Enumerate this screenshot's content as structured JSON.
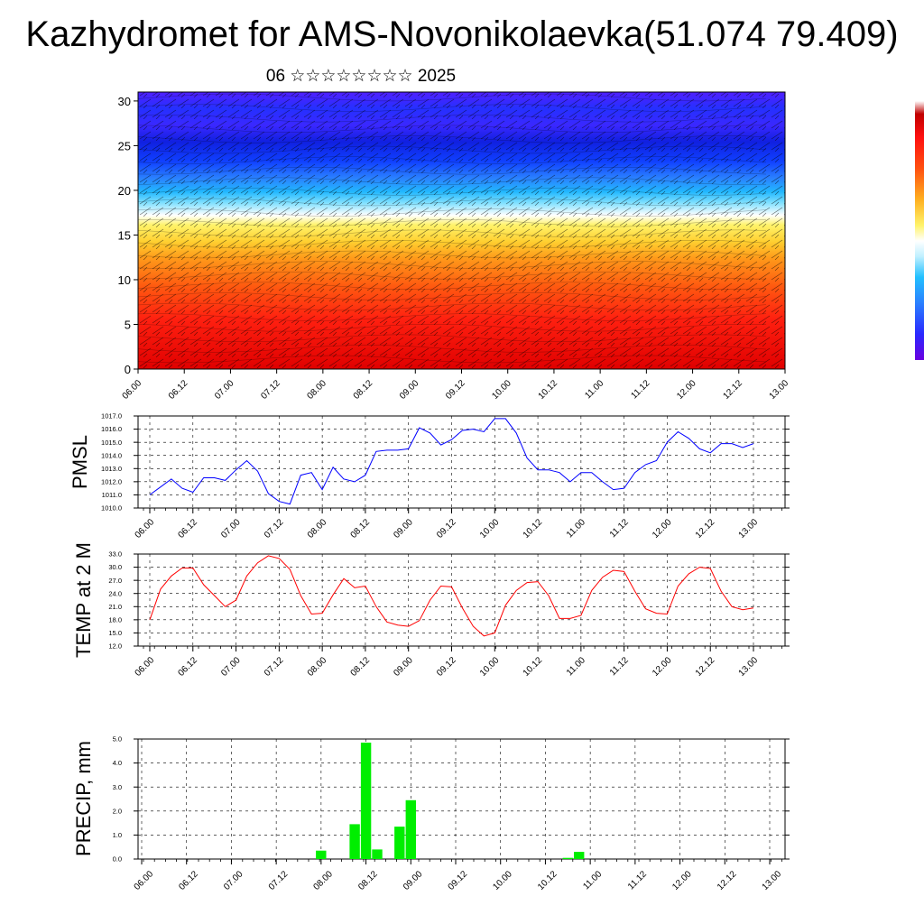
{
  "header": {
    "title": "Kazhydromet for AMS-Novonikolaevka(51.074 79.409)",
    "subtitle": "06 ☆☆☆☆☆☆☆☆ 2025"
  },
  "colors": {
    "pmsl_line": "#0000ff",
    "temp_line": "#ff0000",
    "precip_bar": "#00ee00",
    "grid": "#000000"
  },
  "chart_data": [
    {
      "type": "heatmap",
      "name": "cross-section",
      "x_ticks": [
        "06.00",
        "06.12",
        "07.00",
        "07.12",
        "08.00",
        "08.12",
        "09.00",
        "09.12",
        "10.00",
        "10.12",
        "11.00",
        "11.12",
        "12.00",
        "12.12",
        "13.00"
      ],
      "y_ticks": [
        "0",
        "5",
        "10",
        "15",
        "20",
        "25",
        "30"
      ],
      "ylim": [
        0,
        31
      ],
      "colorbar": [
        "#7f00ff",
        "#3f20ff",
        "#1030ff",
        "#2a80ff",
        "#22b8ff",
        "#80e0ff",
        "#ffffff",
        "#fff36a",
        "#ffd030",
        "#ff9a1a",
        "#ff6a10",
        "#ff2a10",
        "#e00000"
      ],
      "wind_barbs": true
    },
    {
      "type": "line",
      "name": "PMSL",
      "ylabel": "PMSL",
      "ylim": [
        1010.0,
        1017.0
      ],
      "y_ticks": [
        "1010.0",
        "1011.0",
        "1012.0",
        "1013.0",
        "1014.0",
        "1015.0",
        "1016.0",
        "1017.0"
      ],
      "x_ticks": [
        "06.00",
        "06.12",
        "07.00",
        "07.12",
        "08.00",
        "08.12",
        "09.00",
        "09.12",
        "10.00",
        "10.12",
        "11.00",
        "11.12",
        "12.00",
        "12.12",
        "13.00"
      ],
      "values": [
        1011.0,
        1011.6,
        1012.2,
        1011.5,
        1011.2,
        1012.3,
        1012.3,
        1012.1,
        1012.9,
        1013.6,
        1012.8,
        1011.1,
        1010.5,
        1010.3,
        1012.5,
        1012.7,
        1011.4,
        1013.1,
        1012.2,
        1012.0,
        1012.5,
        1014.3,
        1014.4,
        1014.4,
        1014.5,
        1016.1,
        1015.7,
        1014.8,
        1015.2,
        1015.9,
        1016.0,
        1015.8,
        1016.8,
        1016.8,
        1015.7,
        1013.8,
        1012.9,
        1012.9,
        1012.7,
        1012.0,
        1012.7,
        1012.7,
        1012.0,
        1011.4,
        1011.5,
        1012.7,
        1013.3,
        1013.6,
        1015.0,
        1015.8,
        1015.3,
        1014.5,
        1014.2,
        1014.9,
        1014.9,
        1014.6,
        1014.9
      ]
    },
    {
      "type": "line",
      "name": "TEMP at 2 M",
      "ylabel": "TEMP at 2 M",
      "ylim": [
        12.0,
        33.0
      ],
      "y_ticks": [
        "12.0",
        "15.0",
        "18.0",
        "21.0",
        "24.0",
        "27.0",
        "30.0",
        "33.0"
      ],
      "x_ticks": [
        "06.00",
        "06.12",
        "07.00",
        "07.12",
        "08.00",
        "08.12",
        "09.00",
        "09.12",
        "10.00",
        "10.12",
        "11.00",
        "11.12",
        "12.00",
        "12.12",
        "13.00"
      ],
      "values": [
        18.0,
        25.0,
        28.0,
        29.8,
        29.8,
        26.0,
        23.5,
        21.0,
        22.5,
        28.0,
        31.0,
        32.6,
        32.0,
        29.5,
        23.5,
        19.3,
        19.5,
        23.7,
        27.4,
        25.3,
        25.7,
        21.0,
        17.5,
        16.8,
        16.5,
        17.8,
        22.5,
        25.7,
        25.5,
        20.7,
        16.5,
        14.3,
        15.0,
        21.3,
        24.7,
        26.5,
        26.7,
        23.5,
        18.3,
        18.3,
        19.0,
        24.7,
        27.7,
        29.3,
        29.0,
        24.5,
        20.5,
        19.5,
        19.3,
        25.7,
        28.5,
        30.0,
        29.7,
        24.5,
        21.0,
        20.3,
        20.7
      ]
    },
    {
      "type": "bar",
      "name": "PRECIP, mm",
      "ylabel": "PRECIP, mm",
      "ylim": [
        0.0,
        5.0
      ],
      "y_ticks": [
        "0.0",
        "1.0",
        "2.0",
        "3.0",
        "4.0",
        "5.0"
      ],
      "x_ticks": [
        "06.00",
        "06.12",
        "07.00",
        "07.12",
        "08.00",
        "08.12",
        "09.00",
        "09.12",
        "10.00",
        "10.12",
        "11.00",
        "11.12",
        "12.00",
        "12.12",
        "13.00"
      ],
      "values": [
        0,
        0,
        0,
        0,
        0,
        0,
        0,
        0,
        0,
        0,
        0,
        0,
        0,
        0,
        0,
        0,
        0.35,
        0,
        0,
        1.45,
        4.85,
        0.4,
        0,
        1.35,
        2.45,
        0,
        0,
        0,
        0,
        0,
        0,
        0,
        0,
        0,
        0,
        0,
        0,
        0,
        0.05,
        0.3,
        0,
        0,
        0,
        0,
        0,
        0,
        0,
        0,
        0,
        0,
        0,
        0,
        0,
        0,
        0,
        0,
        0
      ]
    }
  ]
}
